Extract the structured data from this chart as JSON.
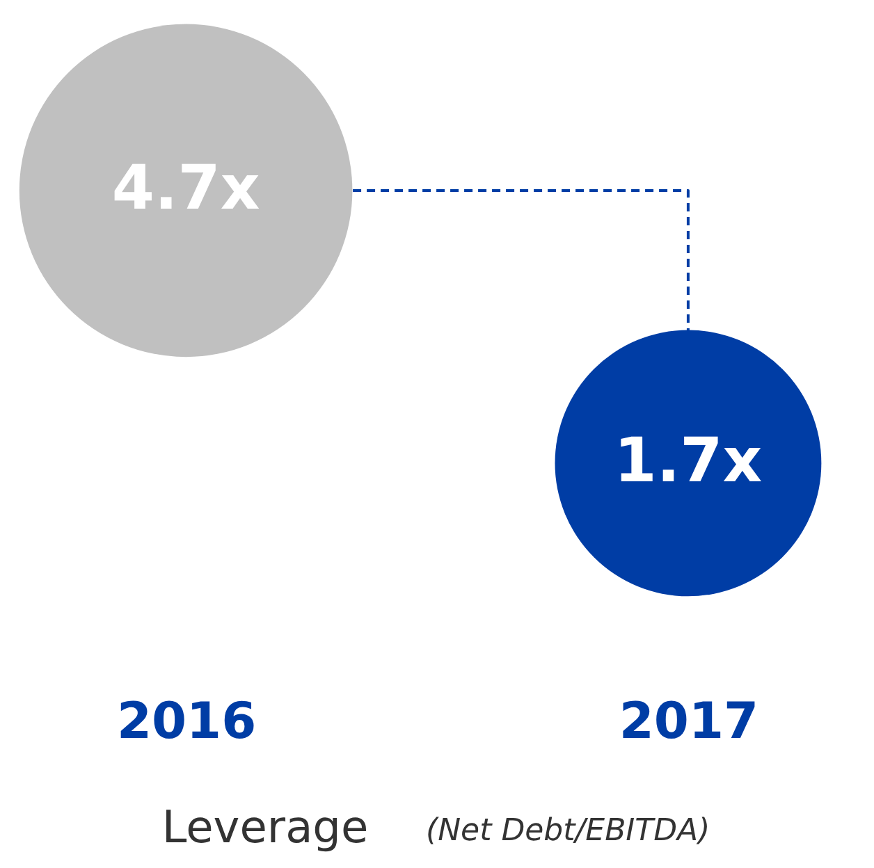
{
  "chart_data": {
    "type": "bubble",
    "categories": [
      "2016",
      "2017"
    ],
    "values": [
      4.7,
      1.7
    ],
    "sizes": [
      1,
      0.64
    ],
    "colors": [
      "#c0c0c0",
      "#003da5"
    ],
    "value_labels": [
      "4.7x",
      "1.7x"
    ],
    "tick_labels": "x",
    "xlabel": "Leverage",
    "annotations": [
      "(Net Debt/EBITDA)"
    ]
  }
}
